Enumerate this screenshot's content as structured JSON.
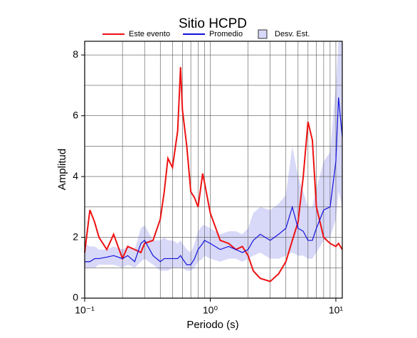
{
  "chart_data": {
    "type": "line",
    "title": "Sitio HCPD",
    "x_label": "Periodo (s)",
    "y_label": "Amplitud",
    "x_scale": "log",
    "x": [
      0.1,
      0.11,
      0.12,
      0.13,
      0.15,
      0.17,
      0.2,
      0.22,
      0.25,
      0.28,
      0.3,
      0.35,
      0.4,
      0.43,
      0.46,
      0.5,
      0.55,
      0.58,
      0.6,
      0.65,
      0.7,
      0.75,
      0.8,
      0.87,
      0.9,
      1.0,
      1.2,
      1.4,
      1.6,
      1.8,
      2.0,
      2.2,
      2.5,
      3.0,
      3.5,
      4.0,
      4.5,
      5.0,
      5.5,
      6.0,
      6.5,
      7.0,
      8.0,
      9.0,
      10.0,
      10.5,
      11.25
    ],
    "series": [
      {
        "name": "Este evento",
        "color": "#ee1111",
        "values": [
          1.5,
          2.9,
          2.5,
          2.0,
          1.6,
          2.1,
          1.3,
          1.7,
          1.6,
          1.5,
          1.8,
          1.9,
          2.6,
          3.5,
          4.6,
          4.3,
          5.5,
          7.6,
          6.2,
          5.0,
          3.5,
          3.3,
          3.0,
          4.1,
          3.8,
          2.8,
          1.9,
          1.8,
          1.6,
          1.7,
          1.4,
          0.9,
          0.65,
          0.55,
          0.8,
          1.2,
          1.9,
          2.5,
          4.0,
          5.8,
          5.2,
          3.0,
          2.0,
          1.8,
          1.7,
          1.8,
          1.6
        ]
      },
      {
        "name": "Promedio",
        "color": "#1111dd",
        "values": [
          1.2,
          1.2,
          1.3,
          1.3,
          1.35,
          1.4,
          1.3,
          1.4,
          1.2,
          1.8,
          1.9,
          1.4,
          1.2,
          1.3,
          1.3,
          1.3,
          1.3,
          1.4,
          1.3,
          1.1,
          1.1,
          1.3,
          1.6,
          1.8,
          1.9,
          1.8,
          1.6,
          1.7,
          1.6,
          1.5,
          1.6,
          1.9,
          2.1,
          1.9,
          2.1,
          2.3,
          3.0,
          2.3,
          2.2,
          1.9,
          1.9,
          2.3,
          2.9,
          3.0,
          4.5,
          6.6,
          5.3
        ]
      },
      {
        "name": "Desv. Est.",
        "color": "#d8d8f8",
        "kind": "band",
        "lower": [
          1.0,
          1.0,
          1.0,
          1.1,
          1.1,
          1.1,
          1.0,
          1.1,
          1.0,
          1.2,
          1.3,
          1.1,
          0.9,
          0.9,
          0.9,
          1.0,
          1.0,
          1.0,
          1.0,
          0.9,
          0.9,
          1.0,
          1.2,
          1.3,
          1.4,
          1.3,
          1.2,
          1.3,
          1.3,
          1.2,
          1.3,
          1.4,
          1.5,
          1.3,
          1.3,
          1.4,
          1.5,
          1.4,
          1.4,
          1.3,
          1.3,
          1.5,
          1.9,
          2.0,
          2.6,
          3.5,
          3.0
        ],
        "upper": [
          1.8,
          1.7,
          1.7,
          1.6,
          1.6,
          1.7,
          1.6,
          1.7,
          1.6,
          2.3,
          2.4,
          1.9,
          1.9,
          2.0,
          1.9,
          1.9,
          1.8,
          1.9,
          1.8,
          1.6,
          1.5,
          1.8,
          2.2,
          2.4,
          2.4,
          2.3,
          2.1,
          2.2,
          2.2,
          2.1,
          2.3,
          2.8,
          3.0,
          2.9,
          3.1,
          3.4,
          5.0,
          4.0,
          3.5,
          3.0,
          3.0,
          3.6,
          4.5,
          4.8,
          7.0,
          8.45,
          8.45
        ]
      }
    ],
    "xlim": [
      0.1,
      11.25
    ],
    "ylim": [
      0,
      8.45
    ],
    "xticks": [
      {
        "value": 0.1,
        "label": "10⁻¹"
      },
      {
        "value": 1,
        "label": "10⁰"
      },
      {
        "value": 10,
        "label": "10¹"
      }
    ],
    "yticks": [
      0,
      2,
      4,
      6,
      8
    ],
    "xgrid": [
      0.2,
      0.3,
      0.4,
      0.5,
      0.6,
      0.7,
      0.8,
      0.9,
      1,
      2,
      3,
      4,
      5,
      6,
      7,
      8,
      9,
      10
    ],
    "ygrid": [
      1,
      2,
      3,
      4,
      5,
      6,
      7,
      8
    ]
  }
}
